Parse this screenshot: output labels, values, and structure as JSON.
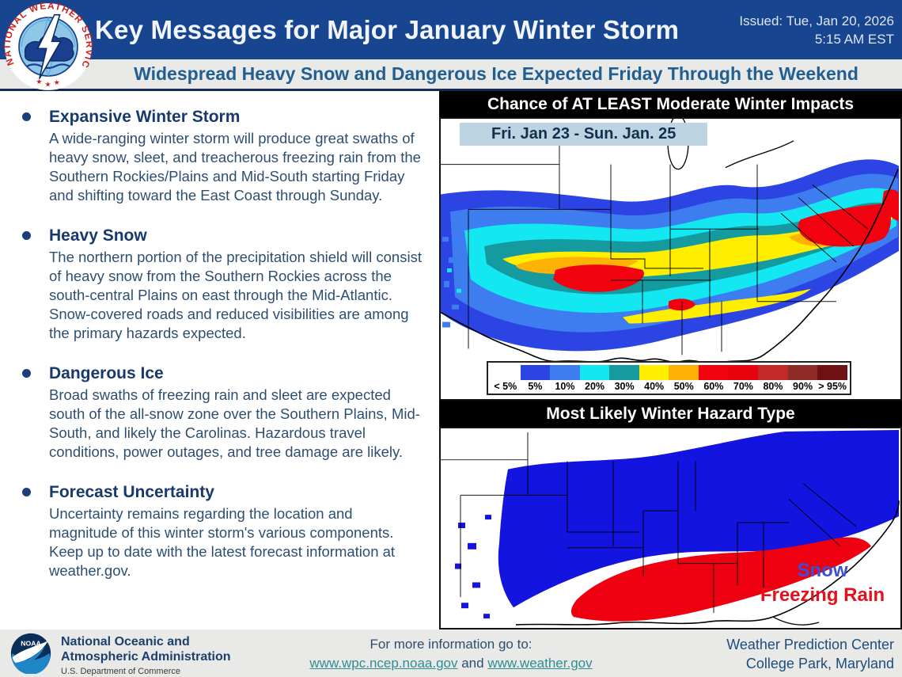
{
  "colors": {
    "header_blue": "#17458f",
    "subtitle_bg": "#e9e9e7",
    "subtitle_text": "#215f93",
    "heading_text": "#17396e",
    "body_text": "#2e4e71",
    "map_title_bg": "#000000",
    "date_chip_bg": "#bcd3e2",
    "link_teal": "#2d8e93"
  },
  "header": {
    "title": "Key Messages for Major January Winter Storm",
    "issued_line1": "Issued: Tue, Jan 20, 2026",
    "issued_line2": "5:15 AM EST"
  },
  "subtitle": "Widespread Heavy Snow and Dangerous Ice Expected Friday Through the Weekend",
  "key_messages": [
    {
      "heading": "Expansive Winter Storm",
      "body": "A wide-ranging winter storm will produce great swaths of heavy snow, sleet, and treacherous freezing rain from the Southern Rockies/Plains and Mid-South starting Friday and shifting toward the East Coast through Sunday."
    },
    {
      "heading": "Heavy Snow",
      "body": "The northern portion of the precipitation shield will consist of heavy snow from the Southern Rockies across the south-central Plains on east through the Mid-Atlantic. Snow-covered roads and reduced visibilities are among the primary hazards expected."
    },
    {
      "heading": "Dangerous Ice",
      "body": "Broad swaths of freezing rain and sleet are expected south of the all-snow zone over the Southern Plains, Mid-South, and likely the Carolinas. Hazardous travel conditions, power outages, and tree damage are likely."
    },
    {
      "heading": "Forecast Uncertainty",
      "body": "Uncertainty remains regarding the location and magnitude of this winter storm's various components. Keep up to date with the latest forecast information at weather.gov."
    }
  ],
  "impact_map": {
    "title": "Chance of AT LEAST Moderate Winter Impacts",
    "date_range": "Fri. Jan 23 - Sun. Jan. 25",
    "legend": [
      {
        "label": "< 5%",
        "color": "#ffffff"
      },
      {
        "label": "5%",
        "color": "#2b44e3"
      },
      {
        "label": "10%",
        "color": "#3d7df0"
      },
      {
        "label": "20%",
        "color": "#12e7f2"
      },
      {
        "label": "30%",
        "color": "#159aa0"
      },
      {
        "label": "40%",
        "color": "#ffee00"
      },
      {
        "label": "50%",
        "color": "#fdb205"
      },
      {
        "label": "60%",
        "color": "#f2020f"
      },
      {
        "label": "70%",
        "color": "#e8020d"
      },
      {
        "label": "80%",
        "color": "#c32a27"
      },
      {
        "label": "90%",
        "color": "#8e2a28"
      },
      {
        "label": "> 95%",
        "color": "#6f1112"
      }
    ]
  },
  "hazard_map": {
    "title": "Most Likely Winter Hazard Type",
    "snow_label": "Snow",
    "snow_color": "#3b4fd9",
    "freezing_rain_label": "Freezing Rain",
    "freezing_rain_color": "#e3101d"
  },
  "footer": {
    "noaa_line1": "National Oceanic and",
    "noaa_line2": "Atmospheric Administration",
    "noaa_line3": "U.S. Department of Commerce",
    "info_line": "For more information go to:",
    "link1": "www.wpc.ncep.noaa.gov",
    "link_joiner": " and ",
    "link2": "www.weather.gov",
    "org_line1": "Weather Prediction Center",
    "org_line2": "College Park, Maryland"
  }
}
